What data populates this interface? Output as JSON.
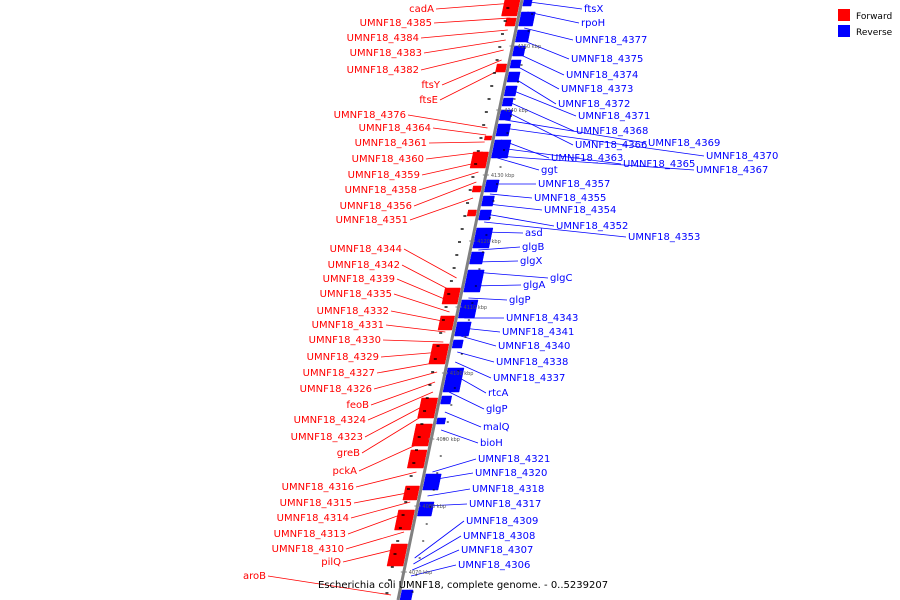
{
  "title": "Escherichia coli UMNF18, complete genome. - 0..5239207",
  "legend": [
    {
      "label": "Forward",
      "color": "#ff0000"
    },
    {
      "label": "Reverse",
      "color": "#0000ff"
    }
  ],
  "colors": {
    "forward": "#ff0000",
    "reverse": "#0000ff",
    "axis": "#808080"
  },
  "scale_labels": [
    "4150 kbp",
    "4140 kbp",
    "4130 kbp",
    "4120 kbp",
    "4110 kbp",
    "4100 kbp",
    "4090 kbp",
    "4080 kbp",
    "4070 kbp"
  ],
  "forward_labels": [
    "cadA",
    "UMNF18_4385",
    "UMNF18_4384",
    "UMNF18_4383",
    "UMNF18_4382",
    "ftsY",
    "ftsE",
    "UMNF18_4376",
    "UMNF18_4364",
    "UMNF18_4361",
    "UMNF18_4360",
    "UMNF18_4359",
    "UMNF18_4358",
    "UMNF18_4356",
    "UMNF18_4351",
    "UMNF18_4344",
    "UMNF18_4342",
    "UMNF18_4339",
    "UMNF18_4335",
    "UMNF18_4332",
    "UMNF18_4331",
    "UMNF18_4330",
    "UMNF18_4329",
    "UMNF18_4327",
    "UMNF18_4326",
    "feoB",
    "UMNF18_4324",
    "UMNF18_4323",
    "greB",
    "pckA",
    "UMNF18_4316",
    "UMNF18_4315",
    "UMNF18_4314",
    "UMNF18_4313",
    "UMNF18_4310",
    "pilQ",
    "aroB"
  ],
  "reverse_labels": [
    "ftsX",
    "rpoH",
    "UMNF18_4377",
    "UMNF18_4375",
    "UMNF18_4374",
    "UMNF18_4373",
    "UMNF18_4372",
    "UMNF18_4371",
    "UMNF18_4368",
    "UMNF18_4366",
    "UMNF18_4369",
    "UMNF18_4370",
    "UMNF18_4363",
    "UMNF18_4365",
    "UMNF18_4367",
    "ggt",
    "UMNF18_4357",
    "UMNF18_4355",
    "UMNF18_4354",
    "UMNF18_4352",
    "UMNF18_4353",
    "asd",
    "glgB",
    "glgX",
    "glgC",
    "glgA",
    "glgP",
    "UMNF18_4343",
    "UMNF18_4341",
    "UMNF18_4340",
    "UMNF18_4338",
    "UMNF18_4337",
    "rtcA",
    "glgP",
    "malQ",
    "bioH",
    "UMNF18_4321",
    "UMNF18_4320",
    "UMNF18_4318",
    "UMNF18_4317",
    "UMNF18_4309",
    "UMNF18_4308",
    "UMNF18_4307",
    "UMNF18_4306"
  ]
}
